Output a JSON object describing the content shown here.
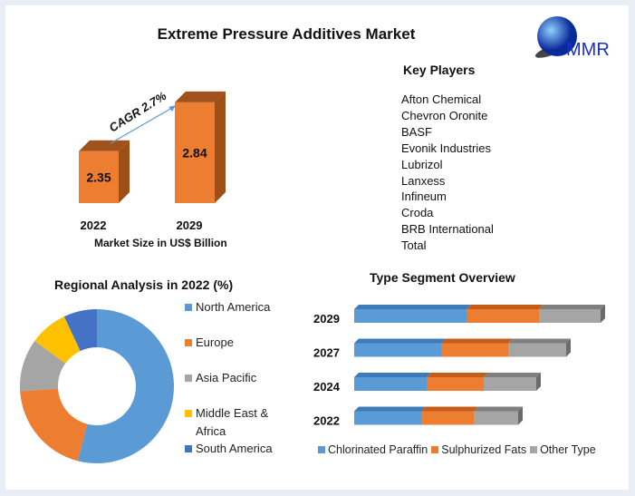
{
  "title": "Extreme Pressure Additives Market",
  "logo_text": "MMR",
  "key_players": {
    "heading": "Key Players",
    "items": [
      "Afton Chemical",
      "Chevron Oronite",
      "BASF",
      "Evonik Industries",
      "Lubrizol",
      "Lanxess",
      "Infineum",
      "Croda",
      "BRB International",
      "Total"
    ]
  },
  "colors": {
    "orange": "#ed7d31",
    "blue": "#5b9bd5",
    "gray": "#a5a5a5",
    "yellow": "#ffc000",
    "darkblue": "#4472c4"
  },
  "chart_data": [
    {
      "type": "bar",
      "categories": [
        "2022",
        "2029"
      ],
      "values": [
        2.35,
        2.84
      ],
      "data_labels": [
        "2.35",
        "2.84"
      ],
      "xlabel": "Market Size in US$ Billion",
      "annotation": "CAGR 2.7%"
    },
    {
      "type": "pie",
      "title": "Regional Analysis in 2022 (%)",
      "categories": [
        "North America",
        "Europe",
        "Asia Pacific",
        "Middle East & Africa",
        "South America"
      ],
      "values": [
        54,
        20,
        11,
        8,
        7
      ],
      "legend": "right"
    },
    {
      "type": "bar",
      "orientation": "horizontal",
      "stacked": true,
      "title": "Type Segment Overview",
      "categories": [
        "2029",
        "2027",
        "2024",
        "2022"
      ],
      "series": [
        {
          "name": "Chlorinated Paraffin",
          "values": [
            124,
            96,
            80,
            74
          ]
        },
        {
          "name": "Sulphurized Fats",
          "values": [
            80,
            74,
            63,
            58
          ]
        },
        {
          "name": "Other Type",
          "values": [
            68,
            64,
            58,
            49
          ]
        }
      ],
      "legend": "bottom"
    }
  ]
}
